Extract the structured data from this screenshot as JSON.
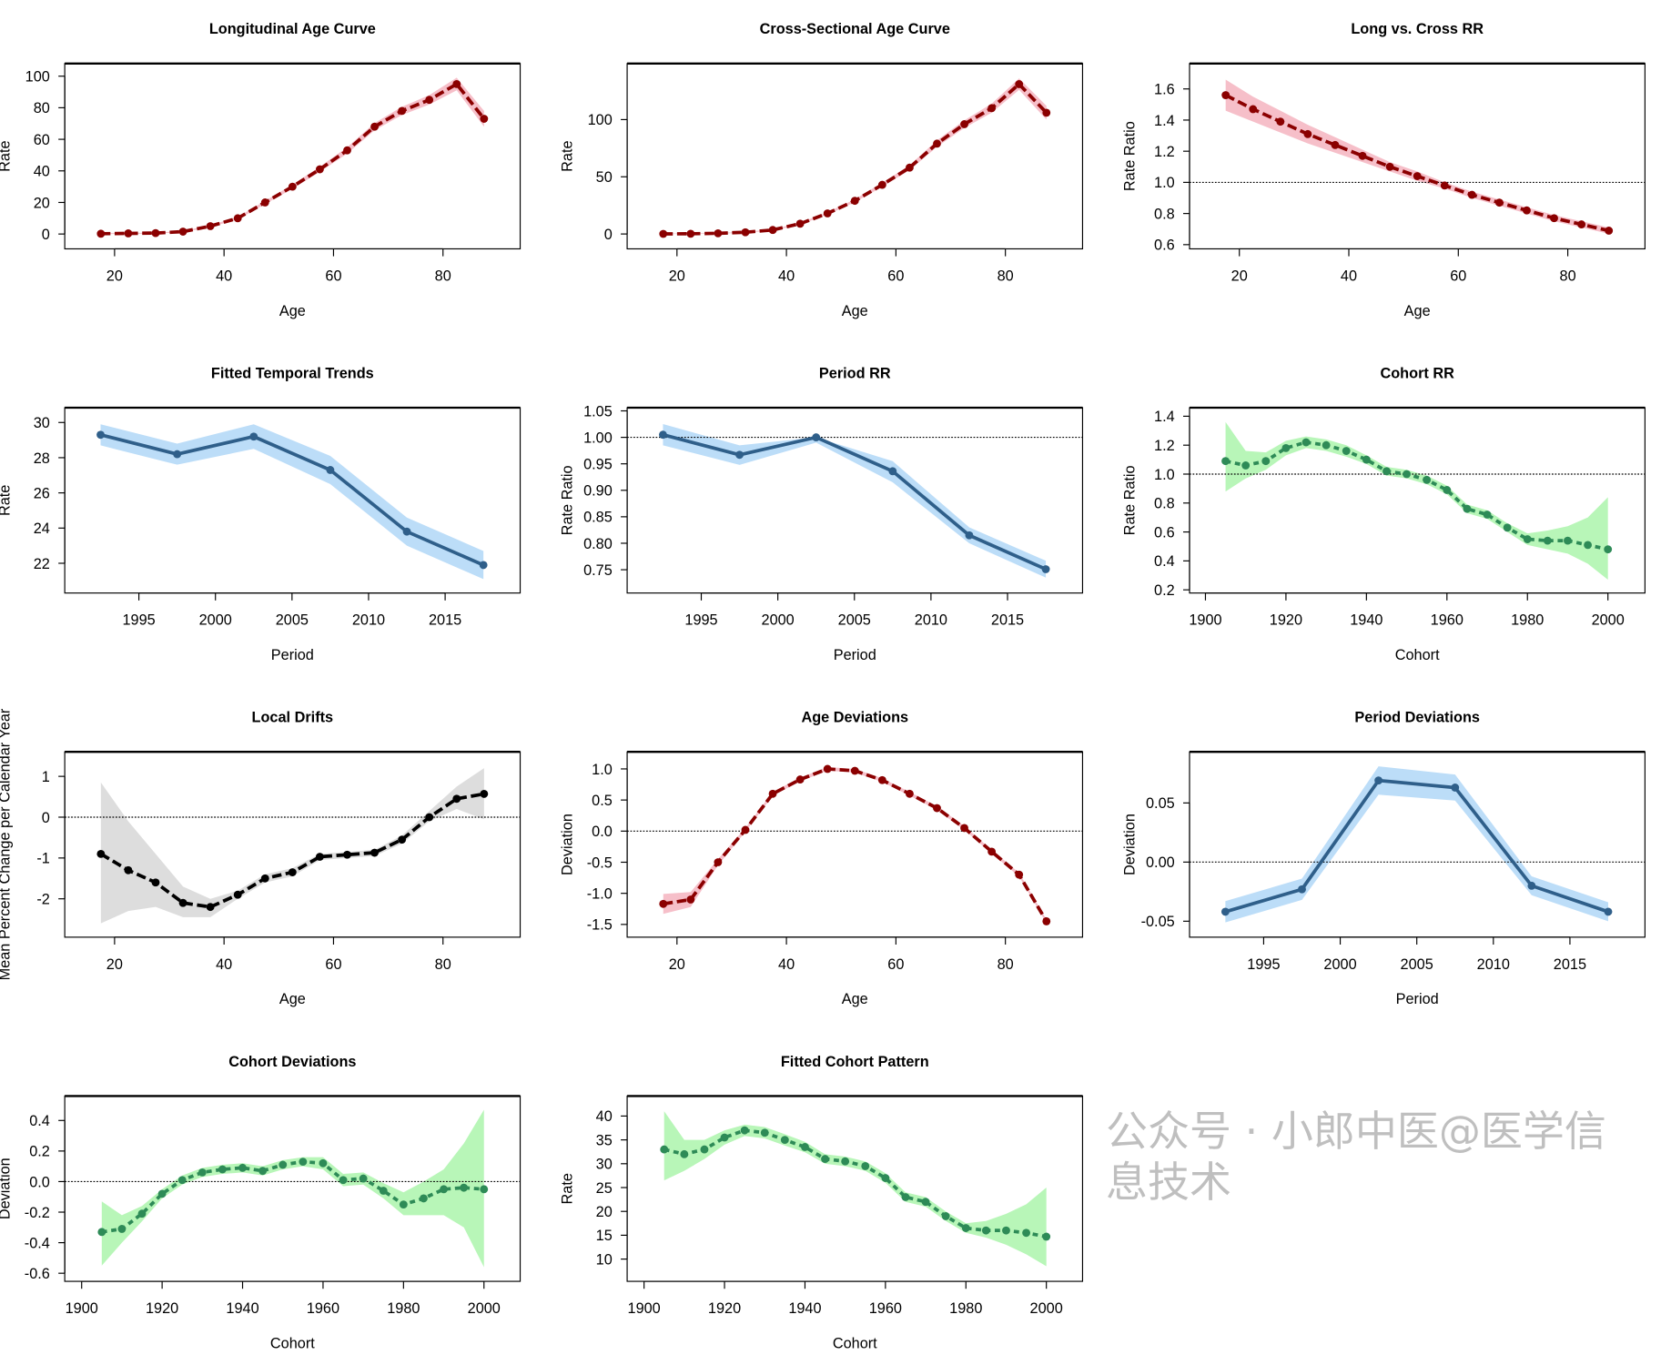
{
  "watermark": "公众号 · 小郎中医@医学信息技术",
  "colors": {
    "red": "#8B0000",
    "red_band": "#F6BFC9",
    "blue": "#2F5F8A",
    "blue_band": "#BCDDF8",
    "green": "#2E8B57",
    "green_band": "#B8F6B8",
    "black": "#000000",
    "gray_band": "#DDDDDD"
  },
  "chart_data": [
    {
      "type": "line",
      "title": "Longitudinal Age Curve",
      "xlabel": "Age",
      "ylabel": "Rate",
      "color": "red",
      "band": "red_band",
      "style": "dashed",
      "x": [
        17.5,
        22.5,
        27.5,
        32.5,
        37.5,
        42.5,
        47.5,
        52.5,
        57.5,
        62.5,
        67.5,
        72.5,
        77.5,
        82.5,
        87.5
      ],
      "y": [
        0.2,
        0.4,
        0.6,
        1.5,
        5,
        10,
        20,
        30,
        41,
        53,
        68,
        78,
        85,
        95,
        73
      ],
      "lower": [
        0,
        0.1,
        0.3,
        1.1,
        4.4,
        9.2,
        19,
        28.7,
        39.4,
        51,
        65.7,
        75.4,
        82,
        91,
        68
      ],
      "upper": [
        0.5,
        0.7,
        0.9,
        1.9,
        5.6,
        10.8,
        21,
        31.3,
        42.6,
        55,
        70.3,
        80.6,
        88,
        99,
        78
      ],
      "xlim": [
        10.9,
        94.1
      ],
      "ylim": [
        -9.4,
        108
      ],
      "xticks": [
        "20",
        "40",
        "60",
        "80"
      ],
      "yticks": [
        "0",
        "20",
        "40",
        "60",
        "80",
        "100"
      ],
      "refline": null
    },
    {
      "type": "line",
      "title": "Cross-Sectional Age Curve",
      "xlabel": "Age",
      "ylabel": "Rate",
      "color": "red",
      "band": "red_band",
      "style": "dashed",
      "x": [
        17.5,
        22.5,
        27.5,
        32.5,
        37.5,
        42.5,
        47.5,
        52.5,
        57.5,
        62.5,
        67.5,
        72.5,
        77.5,
        82.5,
        87.5
      ],
      "y": [
        0.1,
        0.2,
        0.6,
        1.5,
        3.5,
        9,
        18,
        29,
        43,
        58,
        79,
        96,
        110,
        131,
        106
      ],
      "lower": [
        0,
        0,
        0.3,
        1.1,
        3,
        8.2,
        17,
        27.7,
        41.3,
        55.8,
        76.2,
        92.7,
        106,
        126,
        100
      ],
      "upper": [
        0.4,
        0.5,
        0.9,
        1.9,
        4,
        9.8,
        19,
        30.3,
        44.7,
        60.2,
        81.8,
        99.3,
        114,
        136,
        112
      ],
      "xlim": [
        10.9,
        94.1
      ],
      "ylim": [
        -13,
        149
      ],
      "xticks": [
        "20",
        "40",
        "60",
        "80"
      ],
      "yticks": [
        "0",
        "50",
        "100"
      ],
      "refline": null
    },
    {
      "type": "line",
      "title": "Long vs. Cross RR",
      "xlabel": "Age",
      "ylabel": "Rate Ratio",
      "color": "red",
      "band": "red_band",
      "style": "dashed",
      "x": [
        17.5,
        22.5,
        27.5,
        32.5,
        37.5,
        42.5,
        47.5,
        52.5,
        57.5,
        62.5,
        67.5,
        72.5,
        77.5,
        82.5,
        87.5
      ],
      "y": [
        1.56,
        1.47,
        1.39,
        1.31,
        1.24,
        1.17,
        1.1,
        1.04,
        0.98,
        0.92,
        0.87,
        0.82,
        0.77,
        0.73,
        0.69
      ],
      "lower": [
        1.46,
        1.39,
        1.32,
        1.25,
        1.19,
        1.13,
        1.07,
        1.01,
        0.96,
        0.9,
        0.85,
        0.8,
        0.75,
        0.71,
        0.67
      ],
      "upper": [
        1.66,
        1.55,
        1.46,
        1.37,
        1.29,
        1.21,
        1.13,
        1.07,
        1.0,
        0.94,
        0.89,
        0.84,
        0.79,
        0.75,
        0.71
      ],
      "xlim": [
        10.9,
        94.1
      ],
      "ylim": [
        0.573,
        1.763
      ],
      "xticks": [
        "20",
        "40",
        "60",
        "80"
      ],
      "yticks": [
        "0.6",
        "0.8",
        "1.0",
        "1.2",
        "1.4",
        "1.6"
      ],
      "refline": 1.0
    },
    {
      "type": "line",
      "title": "Fitted Temporal Trends",
      "xlabel": "Period",
      "ylabel": "Rate",
      "color": "blue",
      "band": "blue_band",
      "style": "solid",
      "x": [
        1992.5,
        1997.5,
        2002.5,
        2007.5,
        2012.5,
        2017.5
      ],
      "y": [
        29.3,
        28.2,
        29.2,
        27.3,
        23.8,
        21.9
      ],
      "lower": [
        28.7,
        27.6,
        28.5,
        26.5,
        23.0,
        21.1
      ],
      "upper": [
        29.9,
        28.8,
        29.9,
        28.1,
        24.6,
        22.7
      ],
      "xlim": [
        1990.16,
        2019.9
      ],
      "ylim": [
        20.31,
        30.84
      ],
      "xticks": [
        "1995",
        "2000",
        "2005",
        "2010",
        "2015"
      ],
      "yticks": [
        "22",
        "24",
        "26",
        "28",
        "30"
      ],
      "refline": null
    },
    {
      "type": "line",
      "title": "Period RR",
      "xlabel": "Period",
      "ylabel": "Rate Ratio",
      "color": "blue",
      "band": "blue_band",
      "style": "solid",
      "x": [
        1992.5,
        1997.5,
        2002.5,
        2007.5,
        2012.5,
        2017.5
      ],
      "y": [
        1.005,
        0.967,
        1.0,
        0.936,
        0.815,
        0.751
      ],
      "lower": [
        0.985,
        0.948,
        0.99,
        0.915,
        0.8,
        0.735
      ],
      "upper": [
        1.025,
        0.985,
        1.0,
        0.955,
        0.83,
        0.767
      ],
      "xlim": [
        1990.16,
        2019.9
      ],
      "ylim": [
        0.706,
        1.056
      ],
      "xticks": [
        "1995",
        "2000",
        "2005",
        "2010",
        "2015"
      ],
      "yticks": [
        "0.75",
        "0.80",
        "0.85",
        "0.90",
        "0.95",
        "1.00",
        "1.05"
      ],
      "refline": 1.0
    },
    {
      "type": "line",
      "title": "Cohort RR",
      "xlabel": "Cohort",
      "ylabel": "Rate Ratio",
      "color": "green",
      "band": "green_band",
      "style": "dotted",
      "x": [
        1905,
        1910,
        1915,
        1920,
        1925,
        1930,
        1935,
        1940,
        1945,
        1950,
        1955,
        1960,
        1965,
        1970,
        1975,
        1980,
        1985,
        1990,
        1995,
        2000
      ],
      "y": [
        1.09,
        1.06,
        1.09,
        1.18,
        1.22,
        1.2,
        1.16,
        1.1,
        1.02,
        1.0,
        0.96,
        0.89,
        0.76,
        0.72,
        0.63,
        0.55,
        0.54,
        0.54,
        0.51,
        0.48
      ],
      "lower": [
        0.88,
        0.97,
        1.03,
        1.13,
        1.18,
        1.16,
        1.12,
        1.07,
        0.99,
        0.97,
        0.93,
        0.86,
        0.73,
        0.69,
        0.6,
        0.51,
        0.48,
        0.45,
        0.38,
        0.27
      ],
      "upper": [
        1.36,
        1.16,
        1.15,
        1.23,
        1.26,
        1.24,
        1.2,
        1.13,
        1.05,
        1.03,
        0.99,
        0.92,
        0.79,
        0.75,
        0.66,
        0.59,
        0.61,
        0.64,
        0.7,
        0.84
      ],
      "xlim": [
        1896.05,
        2009.2
      ],
      "ylim": [
        0.178,
        1.459
      ],
      "xticks": [
        "1900",
        "1920",
        "1940",
        "1960",
        "1980",
        "2000"
      ],
      "yticks": [
        "0.2",
        "0.4",
        "0.6",
        "0.8",
        "1.0",
        "1.2",
        "1.4"
      ],
      "refline": 1.0
    },
    {
      "type": "line",
      "title": "Local Drifts",
      "xlabel": "Age",
      "ylabel": "Mean Percent Change per Calendar Year",
      "color": "black",
      "band": "gray_band",
      "style": "dashed",
      "x": [
        17.5,
        22.5,
        27.5,
        32.5,
        37.5,
        42.5,
        47.5,
        52.5,
        57.5,
        62.5,
        67.5,
        72.5,
        77.5,
        82.5,
        87.5
      ],
      "y": [
        -0.9,
        -1.3,
        -1.6,
        -2.1,
        -2.2,
        -1.9,
        -1.5,
        -1.35,
        -0.97,
        -0.92,
        -0.87,
        -0.55,
        0.0,
        0.45,
        0.57
      ],
      "lower": [
        -2.6,
        -2.3,
        -2.2,
        -2.45,
        -2.45,
        -2.0,
        -1.6,
        -1.45,
        -1.05,
        -1.0,
        -0.95,
        -0.65,
        -0.1,
        0.2,
        -0.05
      ],
      "upper": [
        0.85,
        -0.1,
        -0.9,
        -1.7,
        -2.0,
        -1.8,
        -1.4,
        -1.25,
        -0.9,
        -0.85,
        -0.8,
        -0.45,
        0.15,
        0.75,
        1.2
      ],
      "xlim": [
        10.9,
        94.1
      ],
      "ylim": [
        -2.94,
        1.6
      ],
      "xticks": [
        "20",
        "40",
        "60",
        "80"
      ],
      "yticks": [
        "-2",
        "-1",
        "0",
        "1"
      ],
      "refline": 0
    },
    {
      "type": "line",
      "title": "Age Deviations",
      "xlabel": "Age",
      "ylabel": "Deviation",
      "color": "red",
      "band": "red_band",
      "style": "dashed",
      "x": [
        17.5,
        22.5,
        27.5,
        32.5,
        37.5,
        42.5,
        47.5,
        52.5,
        57.5,
        62.5,
        67.5,
        72.5,
        77.5,
        82.5,
        87.5
      ],
      "y": [
        -1.17,
        -1.1,
        -0.5,
        0.02,
        0.6,
        0.83,
        1.0,
        0.97,
        0.82,
        0.6,
        0.37,
        0.05,
        -0.33,
        -0.7,
        -1.45
      ],
      "lower": [
        -1.33,
        -1.22,
        -0.55,
        -0.01,
        0.57,
        0.8,
        0.97,
        0.94,
        0.79,
        0.57,
        0.34,
        0.02,
        -0.36,
        -0.73,
        -1.48
      ],
      "upper": [
        -1.01,
        -0.98,
        -0.45,
        0.05,
        0.63,
        0.86,
        1.03,
        1.0,
        0.85,
        0.63,
        0.4,
        0.08,
        -0.3,
        -0.67,
        -1.42
      ],
      "xlim": [
        10.9,
        94.1
      ],
      "ylim": [
        -1.705,
        1.274
      ],
      "xticks": [
        "20",
        "40",
        "60",
        "80"
      ],
      "yticks": [
        "-1.5",
        "-1.0",
        "-0.5",
        "0.0",
        "0.5",
        "1.0"
      ],
      "refline": 0
    },
    {
      "type": "line",
      "title": "Period Deviations",
      "xlabel": "Period",
      "ylabel": "Deviation",
      "color": "blue",
      "band": "blue_band",
      "style": "solid",
      "x": [
        1992.5,
        1997.5,
        2002.5,
        2007.5,
        2012.5,
        2017.5
      ],
      "y": [
        -0.042,
        -0.023,
        0.069,
        0.063,
        -0.02,
        -0.042
      ],
      "lower": [
        -0.051,
        -0.032,
        0.057,
        0.052,
        -0.028,
        -0.05
      ],
      "upper": [
        -0.033,
        -0.014,
        0.081,
        0.074,
        -0.012,
        -0.034
      ],
      "xlim": [
        1990.16,
        2019.9
      ],
      "ylim": [
        -0.0635,
        0.0932
      ],
      "xticks": [
        "1995",
        "2000",
        "2005",
        "2010",
        "2015"
      ],
      "yticks": [
        "-0.05",
        "0.00",
        "0.05"
      ],
      "refline": 0
    },
    {
      "type": "line",
      "title": "Cohort Deviations",
      "xlabel": "Cohort",
      "ylabel": "Deviation",
      "color": "green",
      "band": "green_band",
      "style": "dotted",
      "x": [
        1905,
        1910,
        1915,
        1920,
        1925,
        1930,
        1935,
        1940,
        1945,
        1950,
        1955,
        1960,
        1965,
        1970,
        1975,
        1980,
        1985,
        1990,
        1995,
        2000
      ],
      "y": [
        -0.33,
        -0.31,
        -0.21,
        -0.08,
        0.01,
        0.06,
        0.08,
        0.09,
        0.07,
        0.11,
        0.13,
        0.12,
        0.01,
        0.02,
        -0.06,
        -0.15,
        -0.11,
        -0.05,
        -0.04,
        -0.05
      ],
      "lower": [
        -0.55,
        -0.4,
        -0.26,
        -0.11,
        -0.02,
        0.03,
        0.05,
        0.06,
        0.04,
        0.08,
        0.1,
        0.08,
        -0.03,
        -0.02,
        -0.11,
        -0.22,
        -0.22,
        -0.22,
        -0.3,
        -0.56
      ],
      "upper": [
        -0.13,
        -0.22,
        -0.16,
        -0.05,
        0.04,
        0.09,
        0.11,
        0.12,
        0.1,
        0.14,
        0.16,
        0.16,
        0.05,
        0.06,
        -0.01,
        -0.07,
        0.0,
        0.08,
        0.25,
        0.47
      ],
      "xlim": [
        1895.8,
        2009
      ],
      "ylim": [
        -0.653,
        0.56
      ],
      "xticks": [
        "1900",
        "1920",
        "1940",
        "1960",
        "1980",
        "2000"
      ],
      "yticks": [
        "-0.6",
        "-0.4",
        "-0.2",
        "0.0",
        "0.2",
        "0.4"
      ],
      "refline": 0
    },
    {
      "type": "line",
      "title": "Fitted Cohort Pattern",
      "xlabel": "Cohort",
      "ylabel": "Rate",
      "color": "green",
      "band": "green_band",
      "style": "dotted",
      "x": [
        1905,
        1910,
        1915,
        1920,
        1925,
        1930,
        1935,
        1940,
        1945,
        1950,
        1955,
        1960,
        1965,
        1970,
        1975,
        1980,
        1985,
        1990,
        1995,
        2000
      ],
      "y": [
        33,
        32,
        33,
        35.5,
        37,
        36.5,
        35,
        33.5,
        31,
        30.5,
        29.5,
        27,
        23,
        22,
        19,
        16.5,
        16,
        16,
        15.5,
        14.7
      ],
      "lower": [
        26.5,
        28.5,
        31,
        34,
        35.8,
        35.3,
        33.8,
        32.4,
        30,
        29.5,
        28.5,
        26,
        22,
        21,
        18,
        15.5,
        14.5,
        13,
        11,
        8.5
      ],
      "upper": [
        41,
        35,
        35,
        37,
        38.2,
        37.7,
        36.2,
        34.6,
        32,
        31.5,
        30.5,
        28,
        24,
        23,
        20,
        17.5,
        18,
        19.5,
        21.5,
        25
      ],
      "xlim": [
        1895.8,
        2009
      ],
      "ylim": [
        5.33,
        44.2
      ],
      "xticks": [
        "1900",
        "1920",
        "1940",
        "1960",
        "1980",
        "2000"
      ],
      "yticks": [
        "10",
        "15",
        "20",
        "25",
        "30",
        "35",
        "40"
      ],
      "refline": null
    }
  ]
}
